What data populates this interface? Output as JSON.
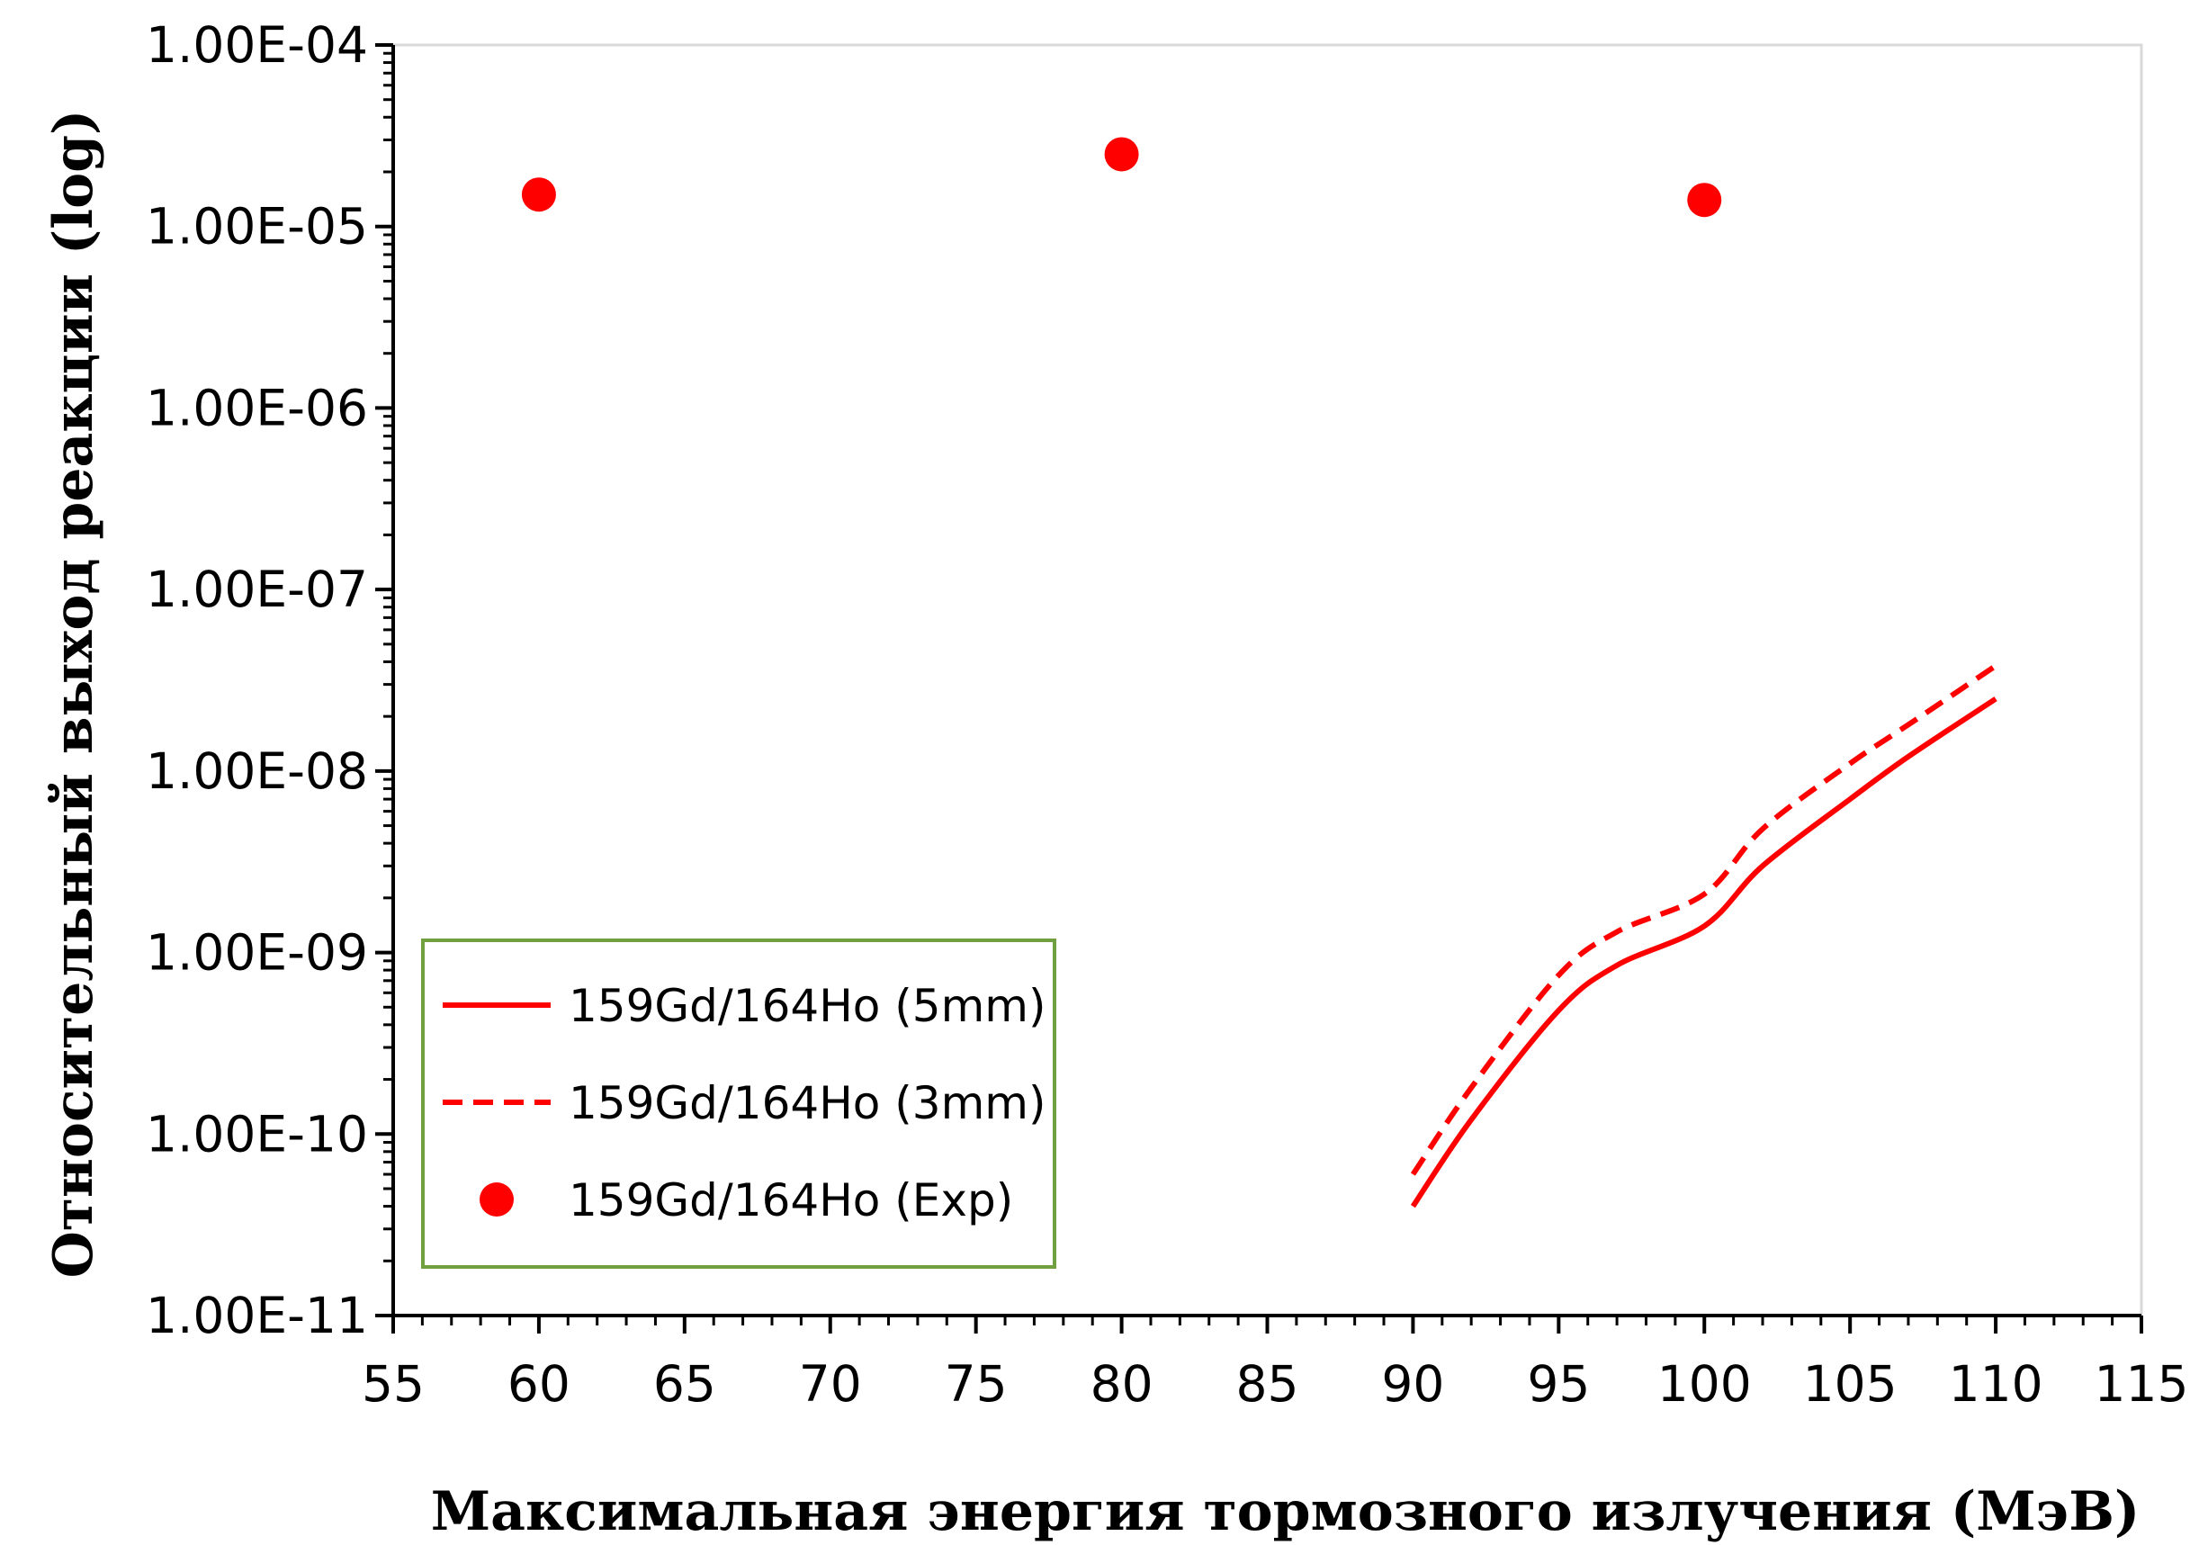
{
  "chart_data": {
    "type": "line",
    "xlabel": "Максимальная энергия тормозного излучения (МэВ)",
    "ylabel": "Относительный выход реакции (log)",
    "xlim": [
      55,
      115
    ],
    "ylim": [
      1e-11,
      0.0001
    ],
    "y_scale": "log",
    "grid": false,
    "x_ticks": [
      "55",
      "60",
      "65",
      "70",
      "75",
      "80",
      "85",
      "90",
      "95",
      "100",
      "105",
      "110",
      "115"
    ],
    "y_ticks": [
      "1.00E-11",
      "1.00E-10",
      "1.00E-09",
      "1.00E-08",
      "1.00E-07",
      "1.00E-06",
      "1.00E-05",
      "1.00E-04"
    ],
    "legend_position": "bottom-left",
    "series": [
      {
        "name": "159Gd/164Ho (5mm)",
        "style": "solid",
        "color": "#ff0000",
        "x": [
          90,
          92,
          95,
          97,
          100,
          102,
          105,
          107,
          110
        ],
        "y": [
          4e-11,
          1.2e-10,
          4.8e-10,
          8.5e-10,
          1.4e-09,
          3e-09,
          7e-09,
          1.2e-08,
          2.5e-08
        ]
      },
      {
        "name": "159Gd/164Ho (3mm)",
        "style": "dashed",
        "color": "#ff0000",
        "x": [
          90,
          92,
          95,
          97,
          100,
          102,
          105,
          107,
          110
        ],
        "y": [
          6e-11,
          1.8e-10,
          7.5e-10,
          1.3e-09,
          2.1e-09,
          4.8e-09,
          1.1e-08,
          1.8e-08,
          3.8e-08
        ]
      },
      {
        "name": "159Gd/164Ho (Exp)",
        "style": "marker",
        "color": "#ff0000",
        "x": [
          60,
          80,
          100
        ],
        "y": [
          1.5e-05,
          2.5e-05,
          1.4e-05
        ]
      }
    ],
    "legend_border_color": "#70a040"
  }
}
